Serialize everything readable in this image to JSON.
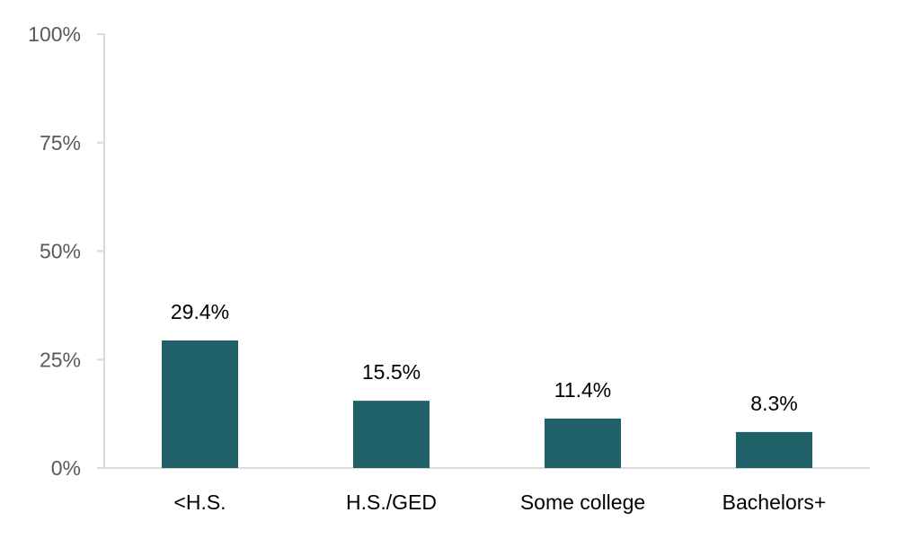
{
  "chart_data": {
    "type": "bar",
    "categories": [
      "<H.S.",
      "H.S./GED",
      "Some college",
      "Bachelors+"
    ],
    "values": [
      29.4,
      15.5,
      11.4,
      8.3
    ],
    "data_labels": [
      "29.4%",
      "15.5%",
      "11.4%",
      "8.3%"
    ],
    "ylim": [
      0,
      100
    ],
    "y_ticks": [
      0,
      25,
      50,
      75,
      100
    ],
    "y_tick_labels": [
      "0%",
      "25%",
      "50%",
      "75%",
      "100%"
    ],
    "grid": false,
    "legend": "none",
    "bar_color": "#1f6069",
    "axis_color": "#d9d9d9"
  }
}
